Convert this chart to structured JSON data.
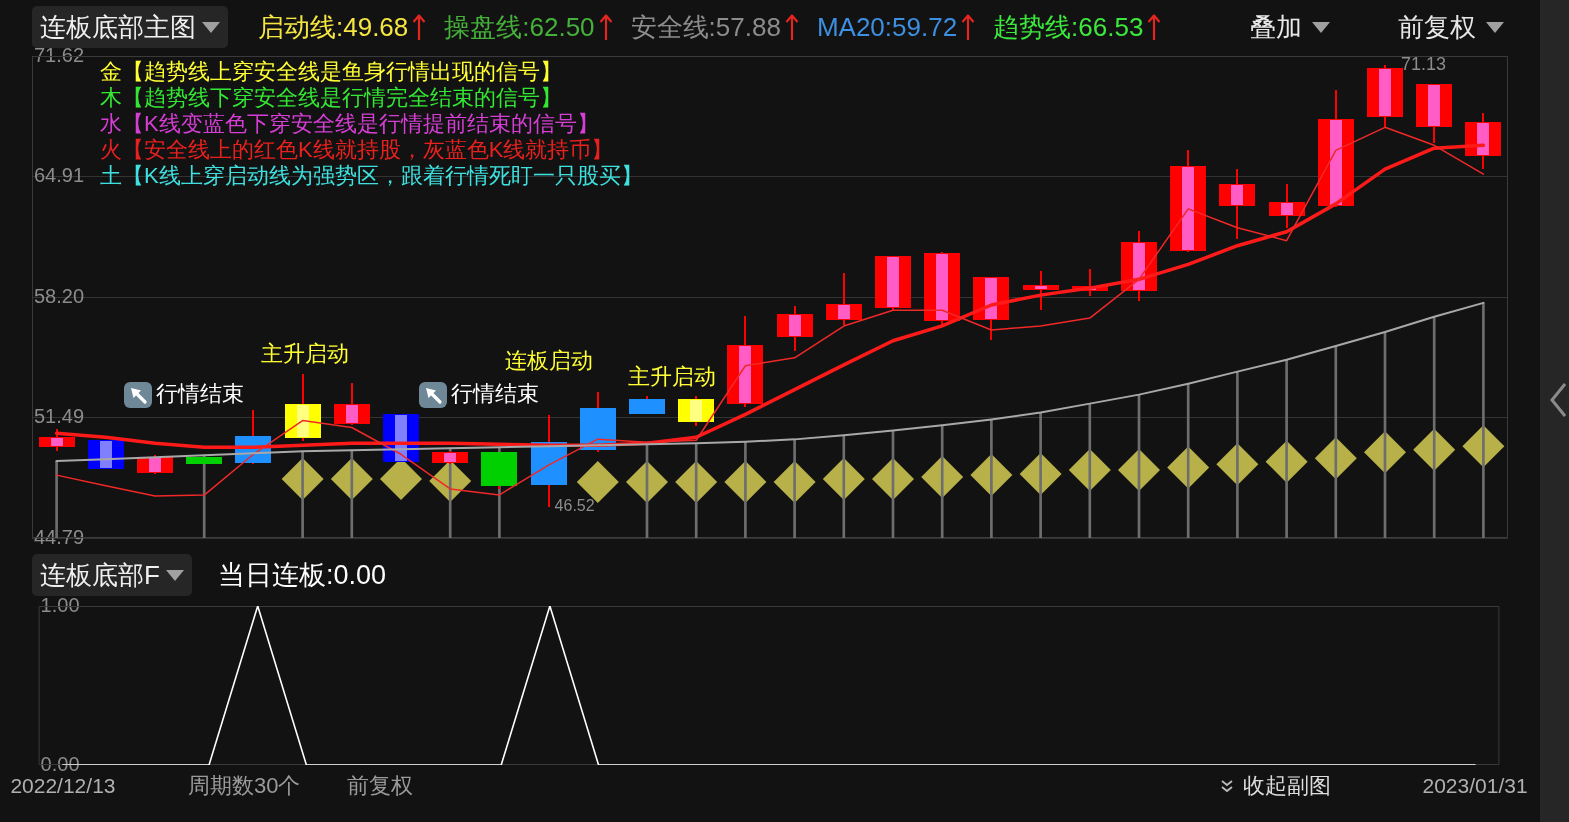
{
  "chart_data": [
    {
      "type": "candlestick",
      "title": "连板底部主图",
      "categories": [
        null,
        null,
        null,
        null,
        null,
        null,
        null,
        null,
        null,
        null,
        null,
        null,
        null,
        null,
        null,
        null,
        null,
        null,
        null,
        null,
        null,
        null,
        null,
        null,
        null,
        null,
        null,
        null,
        null,
        null
      ],
      "ohlc": [
        [
          49.84,
          50.84,
          49.62,
          50.4
        ],
        [
          48.63,
          50.26,
          48.63,
          50.26
        ],
        [
          48.41,
          49.4,
          48.35,
          49.29
        ],
        [
          49.29,
          49.29,
          48.93,
          48.93
        ],
        [
          50.45,
          51.93,
          48.9,
          48.96
        ],
        [
          50.34,
          53.93,
          50.2,
          52.27
        ],
        [
          51.14,
          53.44,
          51.1,
          52.27
        ],
        [
          49.01,
          51.7,
          49.01,
          51.7
        ],
        [
          48.96,
          49.65,
          48.9,
          49.57
        ],
        [
          49.57,
          49.6,
          47.5,
          47.69
        ],
        [
          50.12,
          51.62,
          46.52,
          47.74
        ],
        [
          52.0,
          52.89,
          49.6,
          49.68
        ],
        [
          52.5,
          52.72,
          51.7,
          51.72
        ],
        [
          51.22,
          52.72,
          51.0,
          52.5
        ],
        [
          52.27,
          57.14,
          52.1,
          55.54
        ],
        [
          55.98,
          57.69,
          55.2,
          57.25
        ],
        [
          56.91,
          59.52,
          56.64,
          57.8
        ],
        [
          57.58,
          60.51,
          57.42,
          60.46
        ],
        [
          56.86,
          60.7,
          56.59,
          60.68
        ],
        [
          56.91,
          59.3,
          55.81,
          59.3
        ],
        [
          58.58,
          59.63,
          57.47,
          58.86
        ],
        [
          58.52,
          59.78,
          58.24,
          58.8
        ],
        [
          58.52,
          61.9,
          57.97,
          61.29
        ],
        [
          60.74,
          66.37,
          60.7,
          65.51
        ],
        [
          63.27,
          65.32,
          61.45,
          64.49
        ],
        [
          62.72,
          64.49,
          62.06,
          63.52
        ],
        [
          63.27,
          69.71,
          63.2,
          68.14
        ],
        [
          68.22,
          71.13,
          67.66,
          70.96
        ],
        [
          67.66,
          70.05,
          66.79,
          70.05
        ],
        [
          66.07,
          68.47,
          65.32,
          67.94
        ]
      ],
      "colors": [
        "#ff0000",
        "#0000ff",
        "#ff0000",
        "#00d000",
        "#1e90ff",
        "#ffff00",
        "#ff0000",
        "#0000ff",
        "#ff0000",
        "#00d000",
        "#1e90ff",
        "#1e90ff",
        "#1e90ff",
        "#ffff00",
        "#ff0000",
        "#ff0000",
        "#ff0000",
        "#ff0000",
        "#ff0000",
        "#ff0000",
        "#ff0000",
        "#ff0000",
        "#ff0000",
        "#ff0000",
        "#ff0000",
        "#ff0000",
        "#ff0000",
        "#ff0000",
        "#ff0000",
        "#ff0000"
      ],
      "color": "#ff0000",
      "series": [
        {
          "type": "line",
          "color": "#ff1a1a",
          "values": [
            50.62,
            50.4,
            50.06,
            49.84,
            49.84,
            49.95,
            50.06,
            50.06,
            50.06,
            50.01,
            49.95,
            49.95,
            50.06,
            50.4,
            51.67,
            53.05,
            54.43,
            55.77,
            56.6,
            57.76,
            58.31,
            58.7,
            59.19,
            60.02,
            61.06,
            61.84,
            63.39,
            65.32,
            66.49,
            66.65
          ]
        },
        {
          "type": "line",
          "color": "#f02828",
          "values": [
            48.29,
            47.7,
            47.13,
            47.18,
            49.45,
            51.33,
            50.94,
            49.45,
            47.52,
            47.19,
            48.85,
            50.29,
            50.12,
            50.23,
            54.38,
            54.82,
            56.59,
            57.47,
            57.47,
            56.37,
            56.59,
            57.03,
            59.19,
            63.11,
            62.06,
            61.34,
            66.37,
            67.65,
            66.65,
            65.04
          ]
        },
        {
          "type": "line",
          "color": "#a8a8a8",
          "values": [
            49.07,
            49.18,
            49.29,
            49.4,
            49.51,
            49.62,
            49.68,
            49.73,
            49.79,
            49.84,
            49.9,
            49.95,
            50.01,
            50.06,
            50.15,
            50.28,
            50.51,
            50.78,
            51.06,
            51.39,
            51.78,
            52.27,
            52.77,
            53.38,
            54.05,
            54.71,
            55.48,
            56.26,
            57.11,
            57.88
          ]
        },
        {
          "type": "bar",
          "color": "#6e6e6e",
          "values": [
            49.07,
            null,
            null,
            49.4,
            null,
            49.62,
            49.68,
            null,
            49.79,
            49.84,
            null,
            null,
            50.01,
            50.06,
            50.15,
            50.28,
            50.51,
            50.78,
            51.06,
            51.39,
            51.78,
            52.27,
            52.77,
            53.38,
            54.05,
            54.71,
            55.48,
            56.26,
            57.11,
            57.88
          ]
        },
        {
          "type": "scatter",
          "marker": "diamond",
          "color": "#b8b048",
          "values": [
            null,
            null,
            null,
            null,
            null,
            48.07,
            48.07,
            48.07,
            47.96,
            null,
            null,
            47.91,
            47.91,
            47.91,
            47.91,
            47.91,
            48.07,
            48.07,
            48.18,
            48.29,
            48.35,
            48.57,
            48.57,
            48.71,
            48.9,
            49.04,
            49.23,
            49.57,
            49.7,
            49.9
          ]
        }
      ],
      "ylim": [
        44.79,
        71.62
      ],
      "yticks": [
        44.79,
        51.49,
        {
          "value": 58.2,
          "label": "58.20"
        },
        64.91,
        71.62
      ],
      "grid": "y",
      "tick_labels": "y",
      "annotations": [
        "启动线:49.68",
        "操盘线:62.50",
        "安全线:57.88",
        "MA20:59.72",
        "趋势线:66.53",
        "叠加",
        "前复权",
        "金【趋势线上穿安全线是鱼身行情出现的信号】",
        "木【趋势线下穿安全线是行情完全结束的信号】",
        "水【K线变蓝色下穿安全线是行情提前结束的信号】",
        "火【安全线上的红色K线就持股，灰蓝色K线就持币】",
        "土【K线上穿启动线为强势区，跟着行情死盯一只股买】",
        "行情结束",
        "主升启动",
        "行情结束",
        "连板启动",
        "主升启动",
        "71.13",
        "46.52"
      ]
    },
    {
      "type": "line",
      "title": "连板底部F",
      "categories": [
        "2022/12/13",
        null,
        null,
        null,
        null,
        null,
        null,
        null,
        null,
        null,
        null,
        null,
        null,
        null,
        null,
        null,
        null,
        null,
        null,
        null,
        null,
        null,
        null,
        null,
        null,
        null,
        null,
        null,
        null,
        "2023/01/31"
      ],
      "values": [
        0,
        0,
        0,
        0,
        1,
        0,
        0,
        0,
        0,
        0,
        1,
        0,
        0,
        0,
        0,
        0,
        0,
        0,
        0,
        0,
        0,
        0,
        0,
        0,
        0,
        0,
        0,
        0,
        0,
        0
      ],
      "color": "#ffffff",
      "ylim": [
        0,
        1
      ],
      "yticks": [
        {
          "value": 0,
          "label": "0.00"
        },
        {
          "value": 1,
          "label": "1.00"
        }
      ],
      "annotations": [
        "当日连板:0.00",
        "周期数30个",
        "前复权",
        "收起副图"
      ]
    }
  ]
}
